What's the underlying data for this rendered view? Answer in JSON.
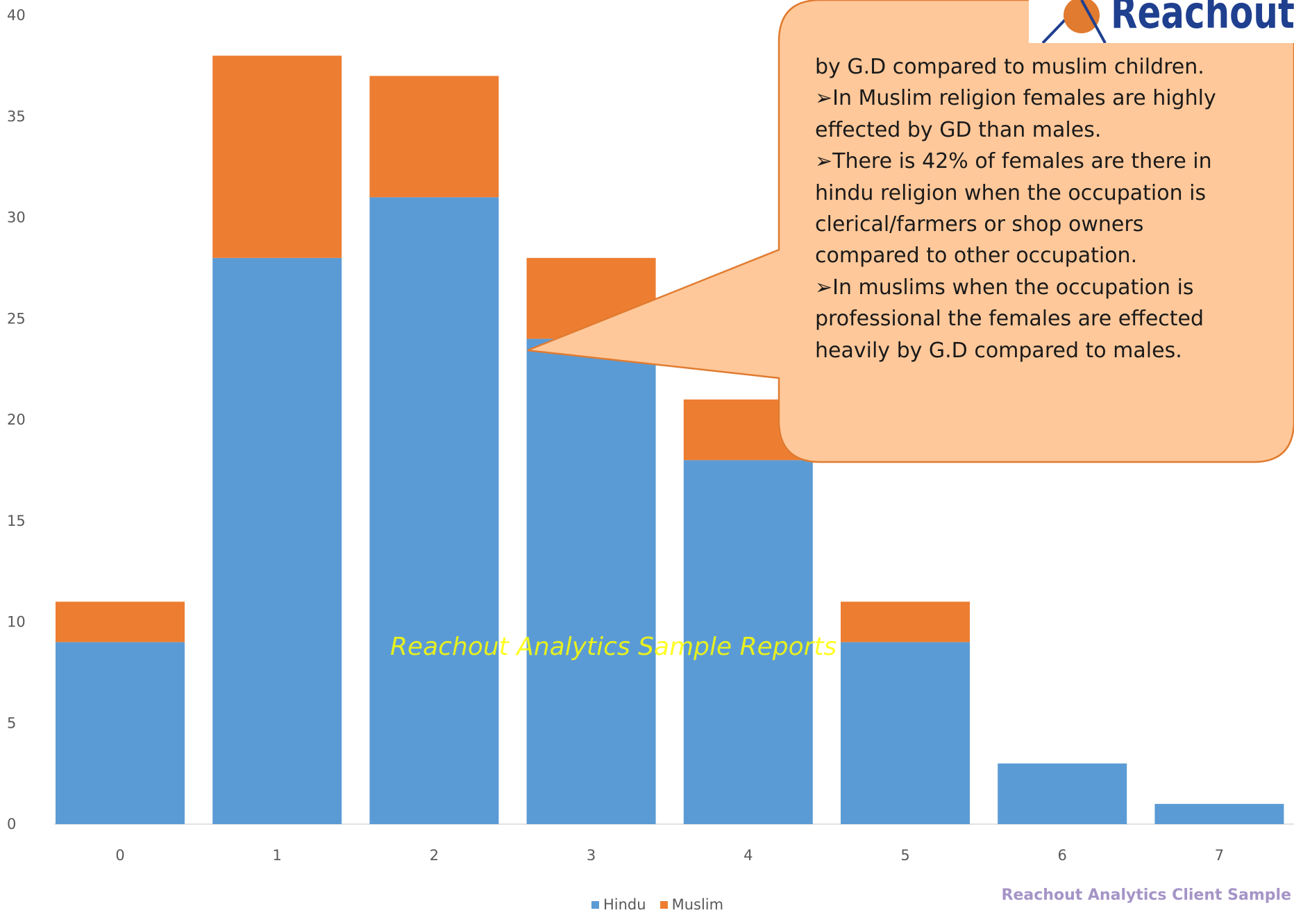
{
  "chart_data": {
    "type": "bar",
    "stacked": true,
    "categories": [
      "0",
      "1",
      "2",
      "3",
      "4",
      "5",
      "6",
      "7"
    ],
    "series": [
      {
        "name": "Hindu",
        "values": [
          9,
          28,
          31,
          24,
          18,
          9,
          3,
          1
        ]
      },
      {
        "name": "Muslim",
        "values": [
          2,
          10,
          6,
          4,
          3,
          2,
          0,
          0
        ]
      }
    ],
    "ylim": [
      0,
      40
    ],
    "yticks": [
      "0",
      "5",
      "10",
      "15",
      "20",
      "25",
      "30",
      "35",
      "40"
    ],
    "grid": false,
    "legend_position": "bottom",
    "colors": {
      "Hindu": "#5b9bd5",
      "Muslim": "#ed7d31"
    }
  },
  "callout": {
    "lines": [
      "by G.D compared to muslim children.",
      "➢In Muslim religion females are highly",
      "effected by GD than males.",
      "➢There is 42% of females are there in",
      "hindu religion when the occupation is",
      "clerical/farmers or shop owners",
      "compared to other occupation.",
      "➢In muslims when the occupation is",
      "professional the females are effected",
      "heavily by G.D compared to males."
    ]
  },
  "watermark": "Reachout Analytics Sample Reports",
  "footer": "Reachout Analytics  Client Sample",
  "logo": {
    "text": "Reachout Analytics"
  },
  "colors": {
    "callout_fill": "#ffc89a",
    "callout_border": "#e07b30",
    "watermark": "#ffff00",
    "footer": "#a594c7"
  }
}
